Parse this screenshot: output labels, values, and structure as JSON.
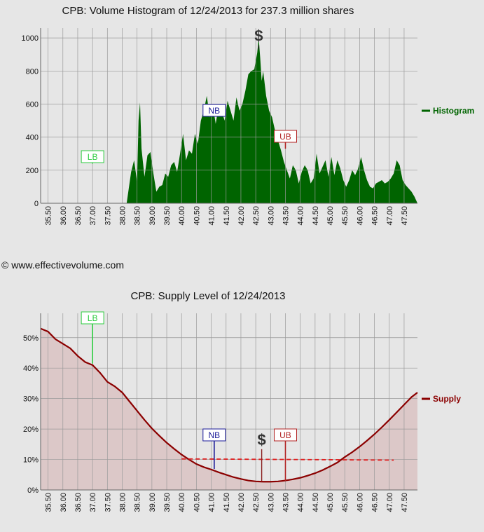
{
  "copyright": "© www.effectivevolume.com",
  "chart_data": [
    {
      "type": "area",
      "title": "CPB: Volume Histogram of 12/24/2013 for 237.3 million shares",
      "legend": {
        "label": "Histogram",
        "position": "right"
      },
      "color": "#006400",
      "x_tick_labels": [
        "35.50",
        "36.00",
        "36.50",
        "37.00",
        "37.50",
        "38.00",
        "38.50",
        "39.00",
        "39.50",
        "40.00",
        "40.50",
        "41.00",
        "41.50",
        "42.00",
        "42.50",
        "43.00",
        "43.50",
        "44.00",
        "44.50",
        "45.00",
        "45.50",
        "46.00",
        "46.50",
        "47.00",
        "47.50"
      ],
      "xlim": [
        35.25,
        47.95
      ],
      "ylim": [
        0,
        1060
      ],
      "y_ticks": [
        0,
        200,
        400,
        600,
        800,
        1000
      ],
      "grid": true,
      "series": [
        {
          "x": [
            35.25,
            38.15,
            38.3,
            38.4,
            38.5,
            38.55,
            38.6,
            38.65,
            38.75,
            38.85,
            38.95,
            39.05,
            39.15,
            39.25,
            39.35,
            39.45,
            39.55,
            39.65,
            39.75,
            39.85,
            39.95,
            40.05,
            40.15,
            40.25,
            40.35,
            40.45,
            40.55,
            40.65,
            40.75,
            40.85,
            40.95,
            41.05,
            41.15,
            41.25,
            41.35,
            41.45,
            41.55,
            41.65,
            41.75,
            41.85,
            41.95,
            42.05,
            42.15,
            42.25,
            42.35,
            42.45,
            42.55,
            42.6,
            42.65,
            42.7,
            42.75,
            42.85,
            42.95,
            43.05,
            43.15,
            43.25,
            43.35,
            43.45,
            43.55,
            43.65,
            43.75,
            43.85,
            43.95,
            44.05,
            44.15,
            44.25,
            44.35,
            44.45,
            44.55,
            44.65,
            44.75,
            44.85,
            44.95,
            45.05,
            45.15,
            45.25,
            45.35,
            45.45,
            45.55,
            45.65,
            45.75,
            45.85,
            45.95,
            46.05,
            46.15,
            46.25,
            46.35,
            46.45,
            46.55,
            46.65,
            46.75,
            46.85,
            46.95,
            47.05,
            47.15,
            47.25,
            47.35,
            47.45,
            47.55,
            47.65,
            47.75,
            47.85,
            47.95
          ],
          "y": [
            0,
            0,
            190,
            260,
            130,
            500,
            610,
            330,
            160,
            290,
            310,
            180,
            70,
            100,
            110,
            180,
            160,
            230,
            250,
            190,
            300,
            420,
            260,
            320,
            300,
            420,
            360,
            500,
            560,
            650,
            520,
            600,
            480,
            590,
            560,
            500,
            620,
            560,
            500,
            640,
            560,
            600,
            680,
            780,
            800,
            810,
            910,
            1000,
            880,
            740,
            800,
            650,
            560,
            520,
            440,
            380,
            320,
            250,
            200,
            150,
            230,
            200,
            120,
            190,
            230,
            200,
            120,
            150,
            300,
            180,
            220,
            260,
            160,
            280,
            170,
            260,
            210,
            140,
            100,
            140,
            200,
            170,
            210,
            280,
            200,
            140,
            100,
            90,
            120,
            130,
            140,
            120,
            130,
            150,
            180,
            260,
            230,
            140,
            110,
            90,
            70,
            40,
            0
          ]
        }
      ],
      "markers": [
        {
          "label": "LB",
          "x": 37.0,
          "value": 240,
          "color": "#2ecc40"
        },
        {
          "label": "NB",
          "x": 41.1,
          "value": 560,
          "color": "#1a1a99"
        },
        {
          "label": "UB",
          "x": 43.5,
          "value": 330,
          "color": "#b22222"
        },
        {
          "label": "$",
          "x": 42.6,
          "value": 930,
          "color": "#222222"
        }
      ]
    },
    {
      "type": "area",
      "title": "CPB: Supply Level of 12/24/2013",
      "legend": {
        "label": "Supply",
        "position": "right"
      },
      "color": "#8b0000",
      "fill": "#dcc8c8",
      "x_tick_labels": [
        "35.50",
        "36.00",
        "36.50",
        "37.00",
        "37.50",
        "38.00",
        "38.50",
        "39.00",
        "39.50",
        "40.00",
        "40.50",
        "41.00",
        "41.50",
        "42.00",
        "42.50",
        "43.00",
        "43.50",
        "44.00",
        "44.50",
        "45.00",
        "45.50",
        "46.00",
        "46.50",
        "47.00",
        "47.50"
      ],
      "xlim": [
        35.25,
        47.95
      ],
      "ylim": [
        0,
        58
      ],
      "y_ticks": [
        0,
        10,
        20,
        30,
        40,
        50
      ],
      "y_tick_labels": [
        "0%",
        "10%",
        "20%",
        "30%",
        "40%",
        "50%"
      ],
      "grid": true,
      "series": [
        {
          "x": [
            35.25,
            35.5,
            35.75,
            36.0,
            36.25,
            36.5,
            36.75,
            37.0,
            37.25,
            37.5,
            37.75,
            38.0,
            38.25,
            38.5,
            38.75,
            39.0,
            39.25,
            39.5,
            39.75,
            40.0,
            40.25,
            40.5,
            40.75,
            41.0,
            41.25,
            41.5,
            41.75,
            42.0,
            42.25,
            42.5,
            42.75,
            43.0,
            43.25,
            43.5,
            43.75,
            44.0,
            44.25,
            44.5,
            44.75,
            45.0,
            45.25,
            45.5,
            45.75,
            46.0,
            46.25,
            46.5,
            46.75,
            47.0,
            47.25,
            47.5,
            47.75,
            47.95
          ],
          "y": [
            53,
            52,
            49.5,
            48,
            46.5,
            44,
            42,
            41,
            38.5,
            35.5,
            34,
            32,
            29,
            26,
            23,
            20.2,
            17.8,
            15.5,
            13.5,
            11.6,
            10,
            8.5,
            7.5,
            6.7,
            5.8,
            5,
            4.2,
            3.6,
            3.1,
            2.8,
            2.7,
            2.7,
            2.8,
            3.1,
            3.5,
            4,
            4.7,
            5.5,
            6.5,
            7.7,
            9,
            10.8,
            12.4,
            14.2,
            16.2,
            18.3,
            20.6,
            23,
            25.5,
            28,
            30.5,
            32
          ]
        }
      ],
      "reference_line": {
        "x": [
          40.0,
          47.15
        ],
        "y": [
          10.2,
          9.8
        ],
        "color": "#e02020"
      },
      "markers": [
        {
          "label": "LB",
          "x": 37.0,
          "value": 41.5,
          "color": "#2ecc40"
        },
        {
          "label": "NB",
          "x": 41.1,
          "value": 6.9,
          "color": "#1a1a99"
        },
        {
          "label": "UB",
          "x": 43.5,
          "value": 3.0,
          "color": "#b22222"
        },
        {
          "label": "$",
          "x": 42.7,
          "value": 2.8,
          "color": "#222222"
        }
      ]
    }
  ]
}
